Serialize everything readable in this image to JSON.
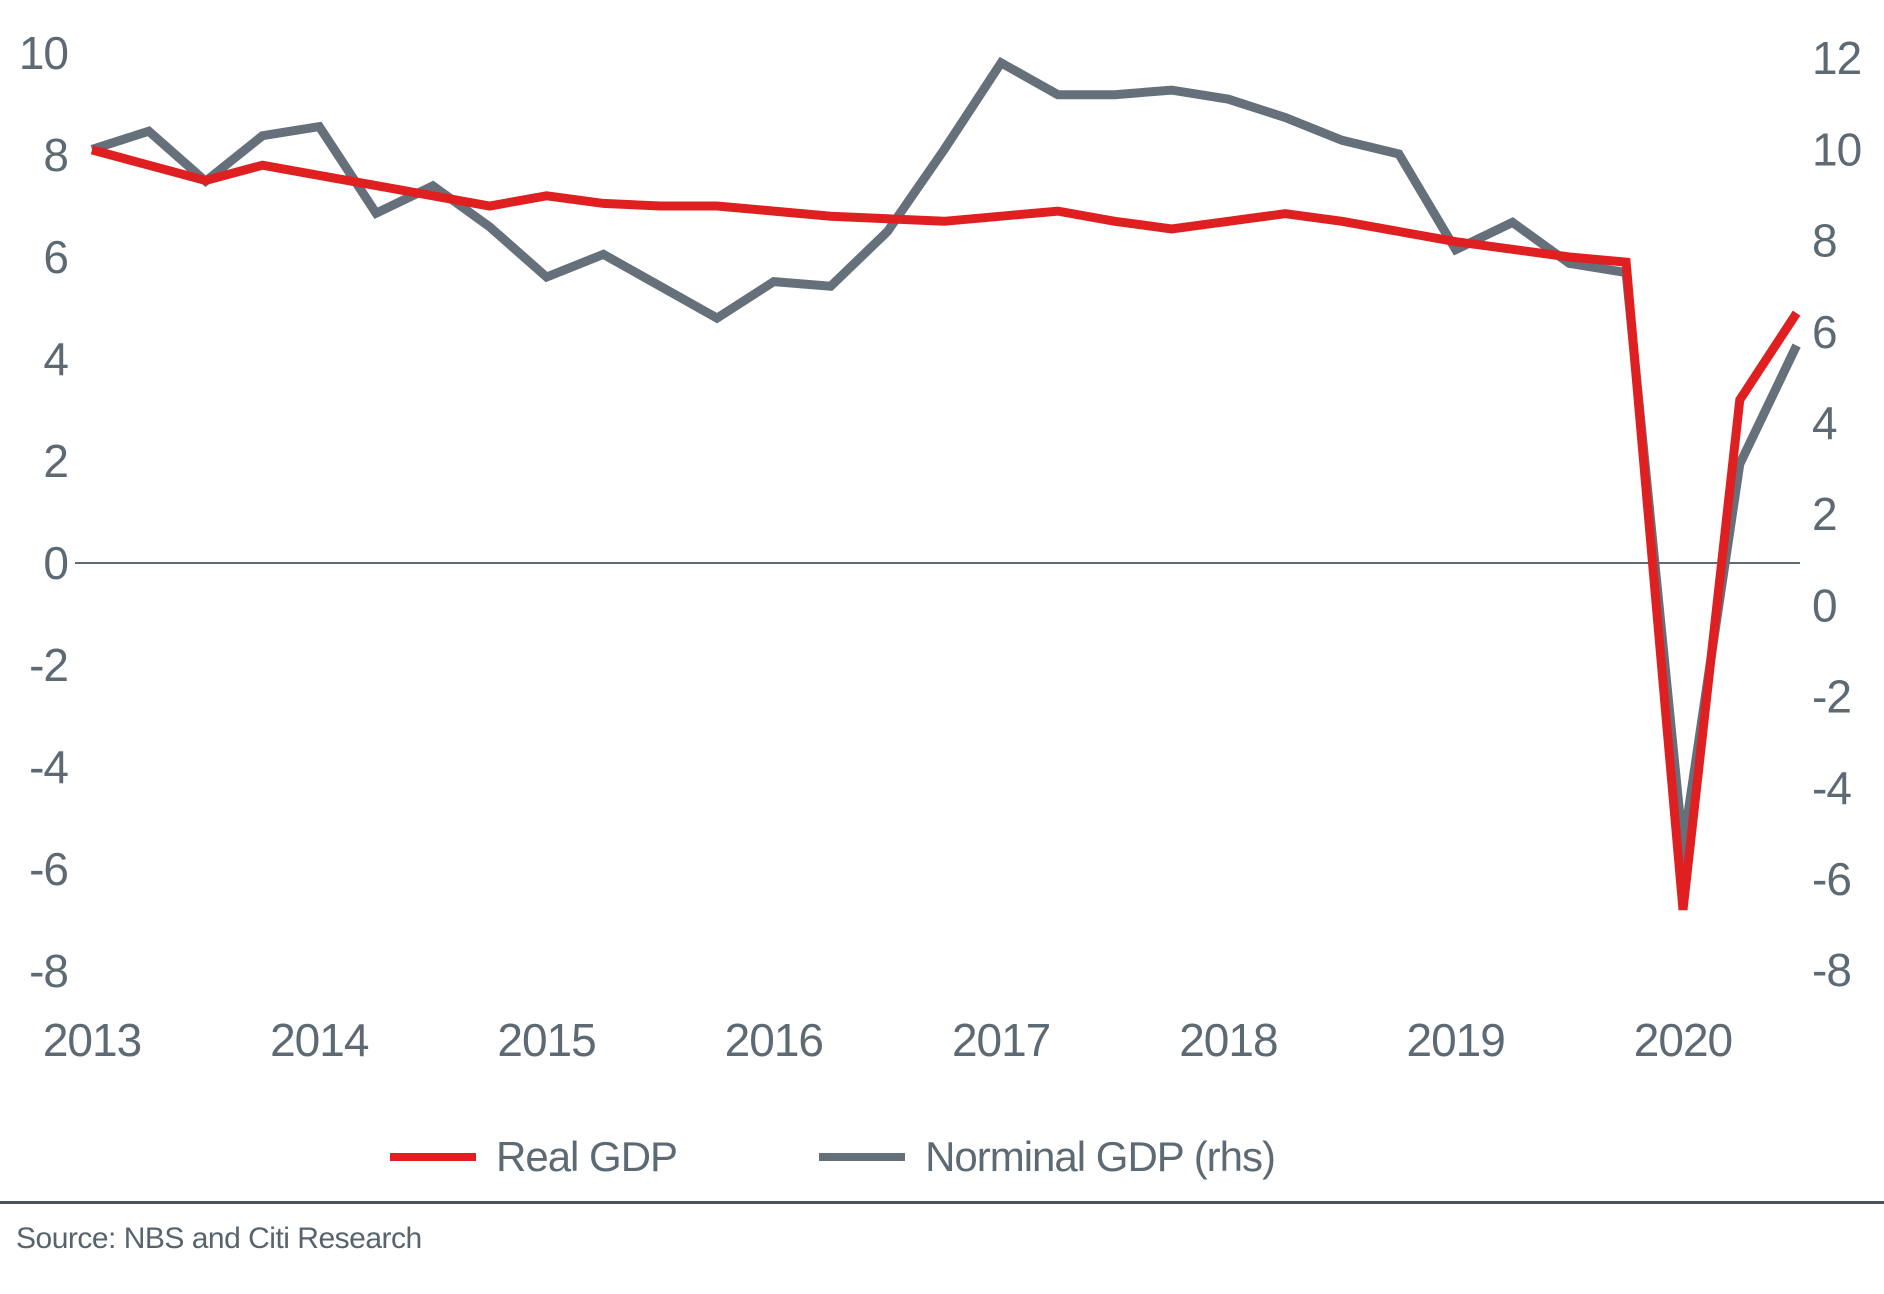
{
  "source_note": "Source: NBS and Citi Research",
  "legend": [
    {
      "label": "Real GDP",
      "color": "#e02020"
    },
    {
      "label": "Norminal GDP (rhs)",
      "color": "#65707b"
    }
  ],
  "colors": {
    "real_gdp_line": "#e02020",
    "nominal_gdp_line": "#65707b",
    "axis_text": "#5d6a73",
    "zero_line": "#5d6a73",
    "bottom_rule": "#47545e",
    "background": "#ffffff"
  },
  "chart_data": {
    "type": "line",
    "title": "",
    "xlabel": "",
    "ylabel": "",
    "grid": false,
    "zero_line": true,
    "legend_position": "bottom",
    "x_unit": "quarter",
    "quarters": [
      "2013Q1",
      "2013Q2",
      "2013Q3",
      "2013Q4",
      "2014Q1",
      "2014Q2",
      "2014Q3",
      "2014Q4",
      "2015Q1",
      "2015Q2",
      "2015Q3",
      "2015Q4",
      "2016Q1",
      "2016Q2",
      "2016Q3",
      "2016Q4",
      "2017Q1",
      "2017Q2",
      "2017Q3",
      "2017Q4",
      "2018Q1",
      "2018Q2",
      "2018Q3",
      "2018Q4",
      "2019Q1",
      "2019Q2",
      "2019Q3",
      "2019Q4",
      "2020Q1",
      "2020Q2",
      "2020Q3"
    ],
    "x_tick_labels": [
      "2013",
      "2014",
      "2015",
      "2016",
      "2017",
      "2018",
      "2019",
      "2020"
    ],
    "left_axis": {
      "ticks": [
        10,
        8,
        6,
        4,
        2,
        0,
        -2,
        -4,
        -6,
        -8
      ],
      "range": [
        -8,
        10
      ],
      "series": "Real GDP"
    },
    "right_axis": {
      "ticks": [
        12,
        10,
        8,
        6,
        4,
        2,
        0,
        -2,
        -4,
        -6,
        -8
      ],
      "range": [
        -8,
        12
      ],
      "series": "Norminal GDP (rhs)"
    },
    "series": [
      {
        "name": "Real GDP",
        "axis": "left",
        "color": "#e02020",
        "values": [
          8.1,
          7.8,
          7.5,
          7.8,
          7.6,
          7.4,
          7.2,
          7.0,
          7.2,
          7.05,
          7.0,
          7.0,
          6.9,
          6.8,
          6.75,
          6.7,
          6.8,
          6.9,
          6.7,
          6.55,
          6.7,
          6.85,
          6.7,
          6.5,
          6.3,
          6.15,
          6.0,
          5.9,
          -6.8,
          3.2,
          4.9
        ]
      },
      {
        "name": "Norminal GDP (rhs)",
        "axis": "right",
        "color": "#65707b",
        "values": [
          10.0,
          10.4,
          9.3,
          10.3,
          10.5,
          8.6,
          9.2,
          8.3,
          7.2,
          7.7,
          7.0,
          6.3,
          7.1,
          7.0,
          8.2,
          10.0,
          11.9,
          11.2,
          11.2,
          11.3,
          11.1,
          10.7,
          10.2,
          9.9,
          7.8,
          8.4,
          7.5,
          7.3,
          -5.3,
          3.1,
          5.7
        ]
      }
    ]
  }
}
